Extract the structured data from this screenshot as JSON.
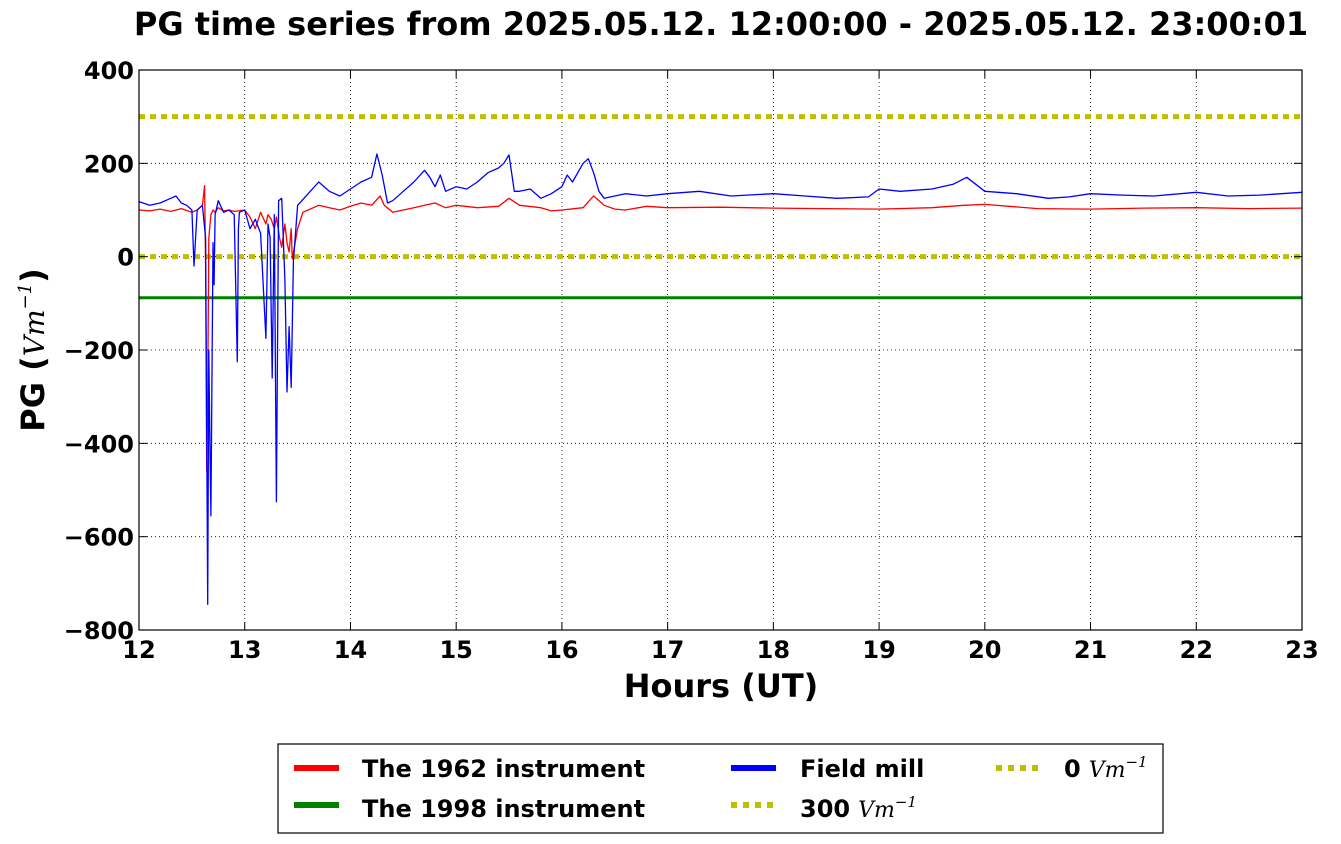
{
  "chart_data": {
    "type": "line",
    "title": "PG time series from 2025.05.12. 12:00:00 - 2025.05.12. 23:00:01",
    "xlabel": "Hours (UT)",
    "ylabel_text": "PG (",
    "ylabel_unit": "Vm",
    "ylabel_unit_exp": "−1",
    "ylabel_close": ")",
    "xlim": [
      12,
      23
    ],
    "ylim": [
      -800,
      400
    ],
    "xticks": [
      12,
      13,
      14,
      15,
      16,
      17,
      18,
      19,
      20,
      21,
      22,
      23
    ],
    "yticks": [
      400,
      200,
      0,
      -200,
      -400,
      -600,
      -800
    ],
    "ytick_labels": [
      "400",
      "200",
      "0",
      "−200",
      "−400",
      "−600",
      "−800"
    ],
    "grid": true,
    "legend_position": "bottom-center (below plot)",
    "series": [
      {
        "name": "The 1962 instrument",
        "color": "#ff0000",
        "x": [
          12.0,
          12.1,
          12.2,
          12.3,
          12.4,
          12.5,
          12.55,
          12.6,
          12.62,
          12.63,
          12.64,
          12.65,
          12.66,
          12.68,
          12.7,
          12.72,
          12.75,
          12.8,
          12.85,
          12.9,
          13.0,
          13.05,
          13.1,
          13.15,
          13.2,
          13.22,
          13.25,
          13.28,
          13.3,
          13.33,
          13.35,
          13.38,
          13.4,
          13.42,
          13.44,
          13.45,
          13.5,
          13.55,
          13.6,
          13.7,
          13.8,
          13.9,
          14.0,
          14.1,
          14.2,
          14.28,
          14.32,
          14.4,
          14.5,
          14.6,
          14.7,
          14.8,
          14.9,
          15.0,
          15.2,
          15.4,
          15.5,
          15.6,
          15.8,
          15.9,
          16.0,
          16.2,
          16.3,
          16.4,
          16.5,
          16.6,
          16.8,
          17.0,
          17.5,
          18.0,
          18.5,
          19.0,
          19.5,
          19.8,
          20.0,
          20.5,
          21.0,
          21.5,
          22.0,
          22.5,
          23.0
        ],
        "y": [
          100,
          98,
          102,
          97,
          103,
          95,
          100,
          110,
          152,
          -20,
          -460,
          -300,
          40,
          90,
          100,
          95,
          105,
          98,
          100,
          97,
          100,
          85,
          60,
          95,
          70,
          90,
          80,
          60,
          85,
          40,
          20,
          70,
          30,
          10,
          60,
          -5,
          60,
          95,
          100,
          110,
          105,
          100,
          108,
          115,
          110,
          130,
          110,
          95,
          100,
          105,
          110,
          115,
          105,
          110,
          105,
          108,
          125,
          110,
          105,
          98,
          100,
          105,
          130,
          110,
          102,
          100,
          108,
          105,
          106,
          104,
          103,
          102,
          105,
          110,
          112,
          103,
          102,
          104,
          105,
          103,
          104
        ]
      },
      {
        "name": "The 1998 instrument",
        "color": "#008000",
        "x": [
          12,
          23
        ],
        "y": [
          -88,
          -88
        ]
      },
      {
        "name": "Field mill",
        "color": "#0000ff",
        "x": [
          12.0,
          12.1,
          12.2,
          12.3,
          12.35,
          12.4,
          12.45,
          12.5,
          12.52,
          12.55,
          12.6,
          12.63,
          12.65,
          12.66,
          12.67,
          12.68,
          12.7,
          12.71,
          12.72,
          12.75,
          12.8,
          12.85,
          12.9,
          12.93,
          12.94,
          12.95,
          13.0,
          13.05,
          13.1,
          13.15,
          13.2,
          13.22,
          13.24,
          13.26,
          13.28,
          13.3,
          13.32,
          13.35,
          13.38,
          13.4,
          13.42,
          13.44,
          13.46,
          13.5,
          13.6,
          13.7,
          13.8,
          13.9,
          14.0,
          14.1,
          14.2,
          14.25,
          14.3,
          14.35,
          14.4,
          14.5,
          14.6,
          14.7,
          14.75,
          14.8,
          14.85,
          14.9,
          15.0,
          15.1,
          15.2,
          15.3,
          15.4,
          15.45,
          15.5,
          15.55,
          15.6,
          15.7,
          15.8,
          15.9,
          16.0,
          16.05,
          16.1,
          16.2,
          16.25,
          16.3,
          16.35,
          16.4,
          16.5,
          16.6,
          16.8,
          17.0,
          17.3,
          17.6,
          18.0,
          18.3,
          18.6,
          18.9,
          19.0,
          19.2,
          19.5,
          19.7,
          19.83,
          20.0,
          20.3,
          20.6,
          20.8,
          21.0,
          21.3,
          21.6,
          22.0,
          22.3,
          22.6,
          23.0
        ],
        "y": [
          118,
          110,
          115,
          125,
          130,
          115,
          110,
          100,
          -20,
          100,
          110,
          40,
          -745,
          -200,
          -380,
          -555,
          30,
          -60,
          90,
          120,
          95,
          100,
          90,
          -225,
          60,
          95,
          100,
          60,
          80,
          50,
          -175,
          70,
          40,
          -260,
          90,
          -525,
          120,
          125,
          -50,
          -290,
          -150,
          -280,
          -10,
          110,
          135,
          160,
          140,
          130,
          145,
          160,
          170,
          220,
          175,
          115,
          120,
          140,
          160,
          185,
          170,
          150,
          175,
          140,
          150,
          145,
          160,
          180,
          190,
          200,
          218,
          140,
          140,
          145,
          125,
          135,
          150,
          175,
          160,
          200,
          210,
          180,
          140,
          125,
          130,
          135,
          130,
          135,
          140,
          130,
          135,
          130,
          125,
          128,
          145,
          140,
          145,
          155,
          170,
          140,
          135,
          125,
          128,
          135,
          132,
          130,
          138,
          130,
          132,
          138
        ]
      }
    ],
    "reference_lines": [
      {
        "name": "300",
        "unit": "Vm",
        "unit_exp": "−1",
        "y": 300,
        "color": "#bfbf00"
      },
      {
        "name": "0",
        "unit": "Vm",
        "unit_exp": "−1",
        "y": 0,
        "color": "#bfbf00"
      }
    ]
  },
  "legend": {
    "items": [
      {
        "label": "The 1962 instrument",
        "color": "#ff0000",
        "style": "solid"
      },
      {
        "label": "The 1998 instrument",
        "color": "#008000",
        "style": "solid"
      },
      {
        "label": "Field mill",
        "color": "#0000ff",
        "style": "solid"
      },
      {
        "label": "300",
        "unit": "Vm",
        "unit_exp": "−1",
        "color": "#bfbf00",
        "style": "dotted"
      },
      {
        "label": "0",
        "unit": "Vm",
        "unit_exp": "−1",
        "color": "#bfbf00",
        "style": "dotted"
      }
    ]
  }
}
